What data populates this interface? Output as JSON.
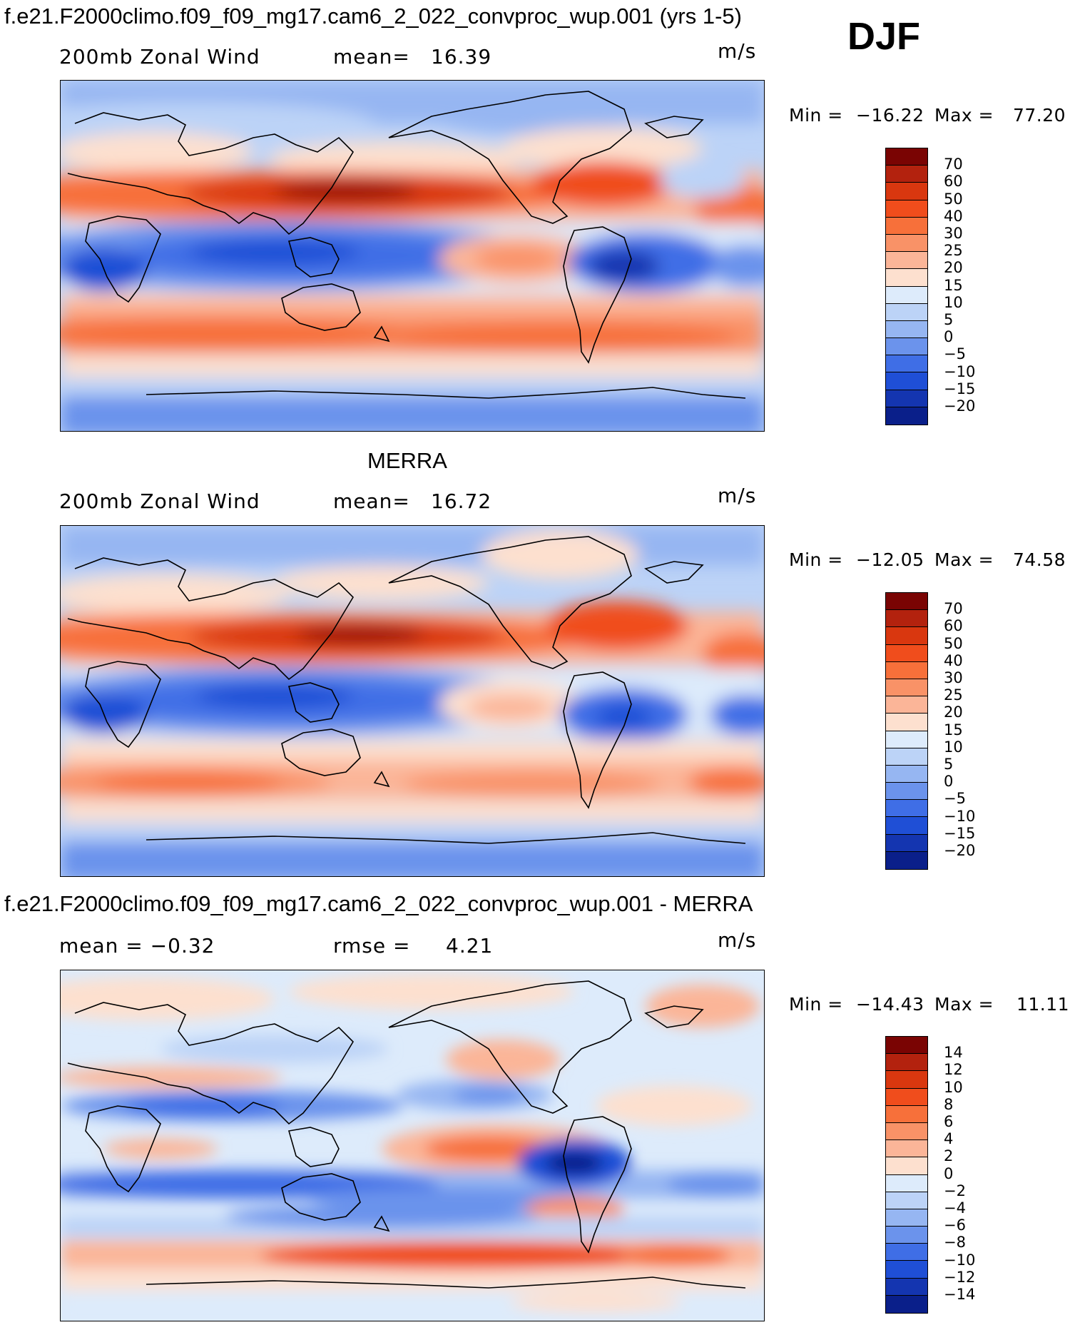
{
  "header": {
    "model_title": "f.e21.F2000climo.f09_f09_mg17.cam6_2_022_convproc_wup.001 (yrs 1-5)",
    "season": "DJF"
  },
  "panels": [
    {
      "id": "model",
      "title": "",
      "left_text": "200mb Zonal Wind",
      "mid_label": "mean=",
      "mid_value": "16.39",
      "units": "m/s",
      "min_label": "Min =",
      "min_value": "−16.22",
      "max_label": "Max =",
      "max_value": "77.20"
    },
    {
      "id": "obs",
      "title": "MERRA",
      "left_text": "200mb Zonal Wind",
      "mid_label": "mean=",
      "mid_value": "16.72",
      "units": "m/s",
      "min_label": "Min =",
      "min_value": "−12.05",
      "max_label": "Max =",
      "max_value": "74.58"
    },
    {
      "id": "diff",
      "title": "f.e21.F2000climo.f09_f09_mg17.cam6_2_022_convproc_wup.001 - MERRA",
      "left_text": "mean =   −0.32",
      "mid_label": "rmse =",
      "mid_value": "4.21",
      "units": "m/s",
      "min_label": "Min =",
      "min_value": "−14.43",
      "max_label": "Max =",
      "max_value": "11.11"
    }
  ],
  "colorbars": {
    "wind": {
      "labels": [
        "70",
        "60",
        "50",
        "40",
        "30",
        "25",
        "20",
        "15",
        "10",
        "5",
        "0",
        "−5",
        "−10",
        "−15",
        "−20"
      ],
      "colors": [
        "#7a0403",
        "#b3220e",
        "#d9370f",
        "#f04d1c",
        "#f7703a",
        "#f99267",
        "#fbb598",
        "#fde0cf",
        "#ddebfb",
        "#bcd3f7",
        "#96b6f2",
        "#6b93ec",
        "#3f6ee6",
        "#1f4fd6",
        "#1435b0",
        "#0a1f8a"
      ]
    },
    "diff": {
      "labels": [
        "14",
        "12",
        "10",
        "8",
        "6",
        "4",
        "2",
        "0",
        "−2",
        "−4",
        "−6",
        "−8",
        "−10",
        "−12",
        "−14"
      ],
      "colors": [
        "#7a0403",
        "#b3220e",
        "#d9370f",
        "#f04d1c",
        "#f7703a",
        "#f99267",
        "#fbb598",
        "#fde0cf",
        "#ddebfb",
        "#bcd3f7",
        "#96b6f2",
        "#6b93ec",
        "#3f6ee6",
        "#1f4fd6",
        "#1435b0",
        "#0a1f8a"
      ]
    }
  },
  "chart_data": [
    {
      "type": "heatmap",
      "title": "f.e21.F2000climo.f09_f09_mg17.cam6_2_022_convproc_wup.001 (yrs 1-5) — 200mb Zonal Wind (DJF)",
      "units": "m/s",
      "mean": 16.39,
      "min": -16.22,
      "max": 77.2,
      "levels": [
        -20,
        -15,
        -10,
        -5,
        0,
        5,
        10,
        15,
        20,
        25,
        30,
        40,
        50,
        60,
        70
      ]
    },
    {
      "type": "heatmap",
      "title": "MERRA — 200mb Zonal Wind (DJF)",
      "units": "m/s",
      "mean": 16.72,
      "min": -12.05,
      "max": 74.58,
      "levels": [
        -20,
        -15,
        -10,
        -5,
        0,
        5,
        10,
        15,
        20,
        25,
        30,
        40,
        50,
        60,
        70
      ]
    },
    {
      "type": "heatmap",
      "title": "f.e21.F2000climo.f09_f09_mg17.cam6_2_022_convproc_wup.001 - MERRA",
      "units": "m/s",
      "mean": -0.32,
      "rmse": 4.21,
      "min": -14.43,
      "max": 11.11,
      "levels": [
        -14,
        -12,
        -10,
        -8,
        -6,
        -4,
        -2,
        0,
        2,
        4,
        6,
        8,
        10,
        12,
        14
      ]
    }
  ]
}
